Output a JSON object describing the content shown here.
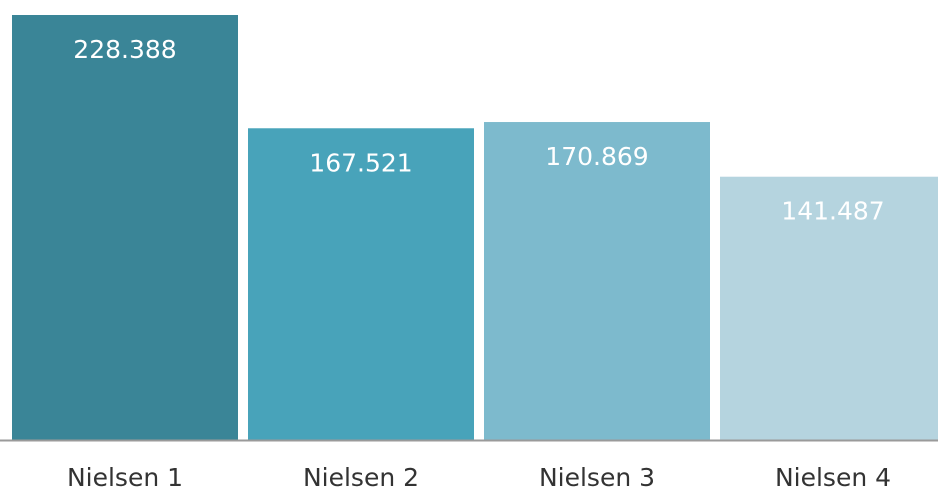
{
  "chart_data": {
    "type": "bar",
    "categories": [
      "Nielsen 1",
      "Nielsen 2",
      "Nielsen 3",
      "Nielsen 4"
    ],
    "values": [
      228.388,
      167.521,
      170.869,
      141.487
    ],
    "colors": [
      "#3a8597",
      "#48a3ba",
      "#7dbacd",
      "#b5d4df"
    ]
  }
}
